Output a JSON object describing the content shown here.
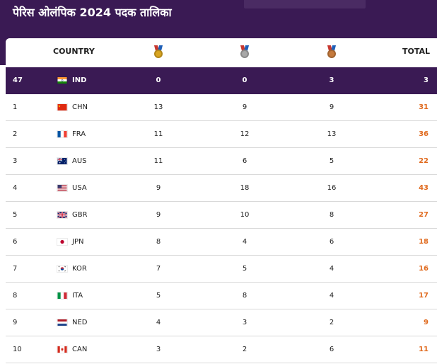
{
  "page": {
    "title": "पेरिस ओलंपिक 2024 पदक तालिका"
  },
  "table": {
    "headers": {
      "country": "COUNTRY",
      "total": "TOTAL"
    },
    "medal_icons": [
      "gold-medal-icon",
      "silver-medal-icon",
      "bronze-medal-icon"
    ],
    "highlight_row": {
      "rank": "47",
      "code": "IND",
      "flag": "india-flag-icon",
      "gold": "0",
      "silver": "0",
      "bronze": "3",
      "total": "3"
    },
    "rows": [
      {
        "rank": "1",
        "code": "CHN",
        "flag": "china-flag-icon",
        "gold": "13",
        "silver": "9",
        "bronze": "9",
        "total": "31"
      },
      {
        "rank": "2",
        "code": "FRA",
        "flag": "france-flag-icon",
        "gold": "11",
        "silver": "12",
        "bronze": "13",
        "total": "36"
      },
      {
        "rank": "3",
        "code": "AUS",
        "flag": "australia-flag-icon",
        "gold": "11",
        "silver": "6",
        "bronze": "5",
        "total": "22"
      },
      {
        "rank": "4",
        "code": "USA",
        "flag": "usa-flag-icon",
        "gold": "9",
        "silver": "18",
        "bronze": "16",
        "total": "43"
      },
      {
        "rank": "5",
        "code": "GBR",
        "flag": "uk-flag-icon",
        "gold": "9",
        "silver": "10",
        "bronze": "8",
        "total": "27"
      },
      {
        "rank": "6",
        "code": "JPN",
        "flag": "japan-flag-icon",
        "gold": "8",
        "silver": "4",
        "bronze": "6",
        "total": "18"
      },
      {
        "rank": "7",
        "code": "KOR",
        "flag": "korea-flag-icon",
        "gold": "7",
        "silver": "5",
        "bronze": "4",
        "total": "16"
      },
      {
        "rank": "8",
        "code": "ITA",
        "flag": "italy-flag-icon",
        "gold": "5",
        "silver": "8",
        "bronze": "4",
        "total": "17"
      },
      {
        "rank": "9",
        "code": "NED",
        "flag": "netherlands-flag-icon",
        "gold": "4",
        "silver": "3",
        "bronze": "2",
        "total": "9"
      },
      {
        "rank": "10",
        "code": "CAN",
        "flag": "canada-flag-icon",
        "gold": "3",
        "silver": "2",
        "bronze": "6",
        "total": "11"
      }
    ]
  },
  "colors": {
    "header_bg": "#3a1a54",
    "total_text": "#e06a1e",
    "gold": "#d9a520",
    "silver": "#a8a8a8",
    "bronze": "#c57a3c"
  }
}
